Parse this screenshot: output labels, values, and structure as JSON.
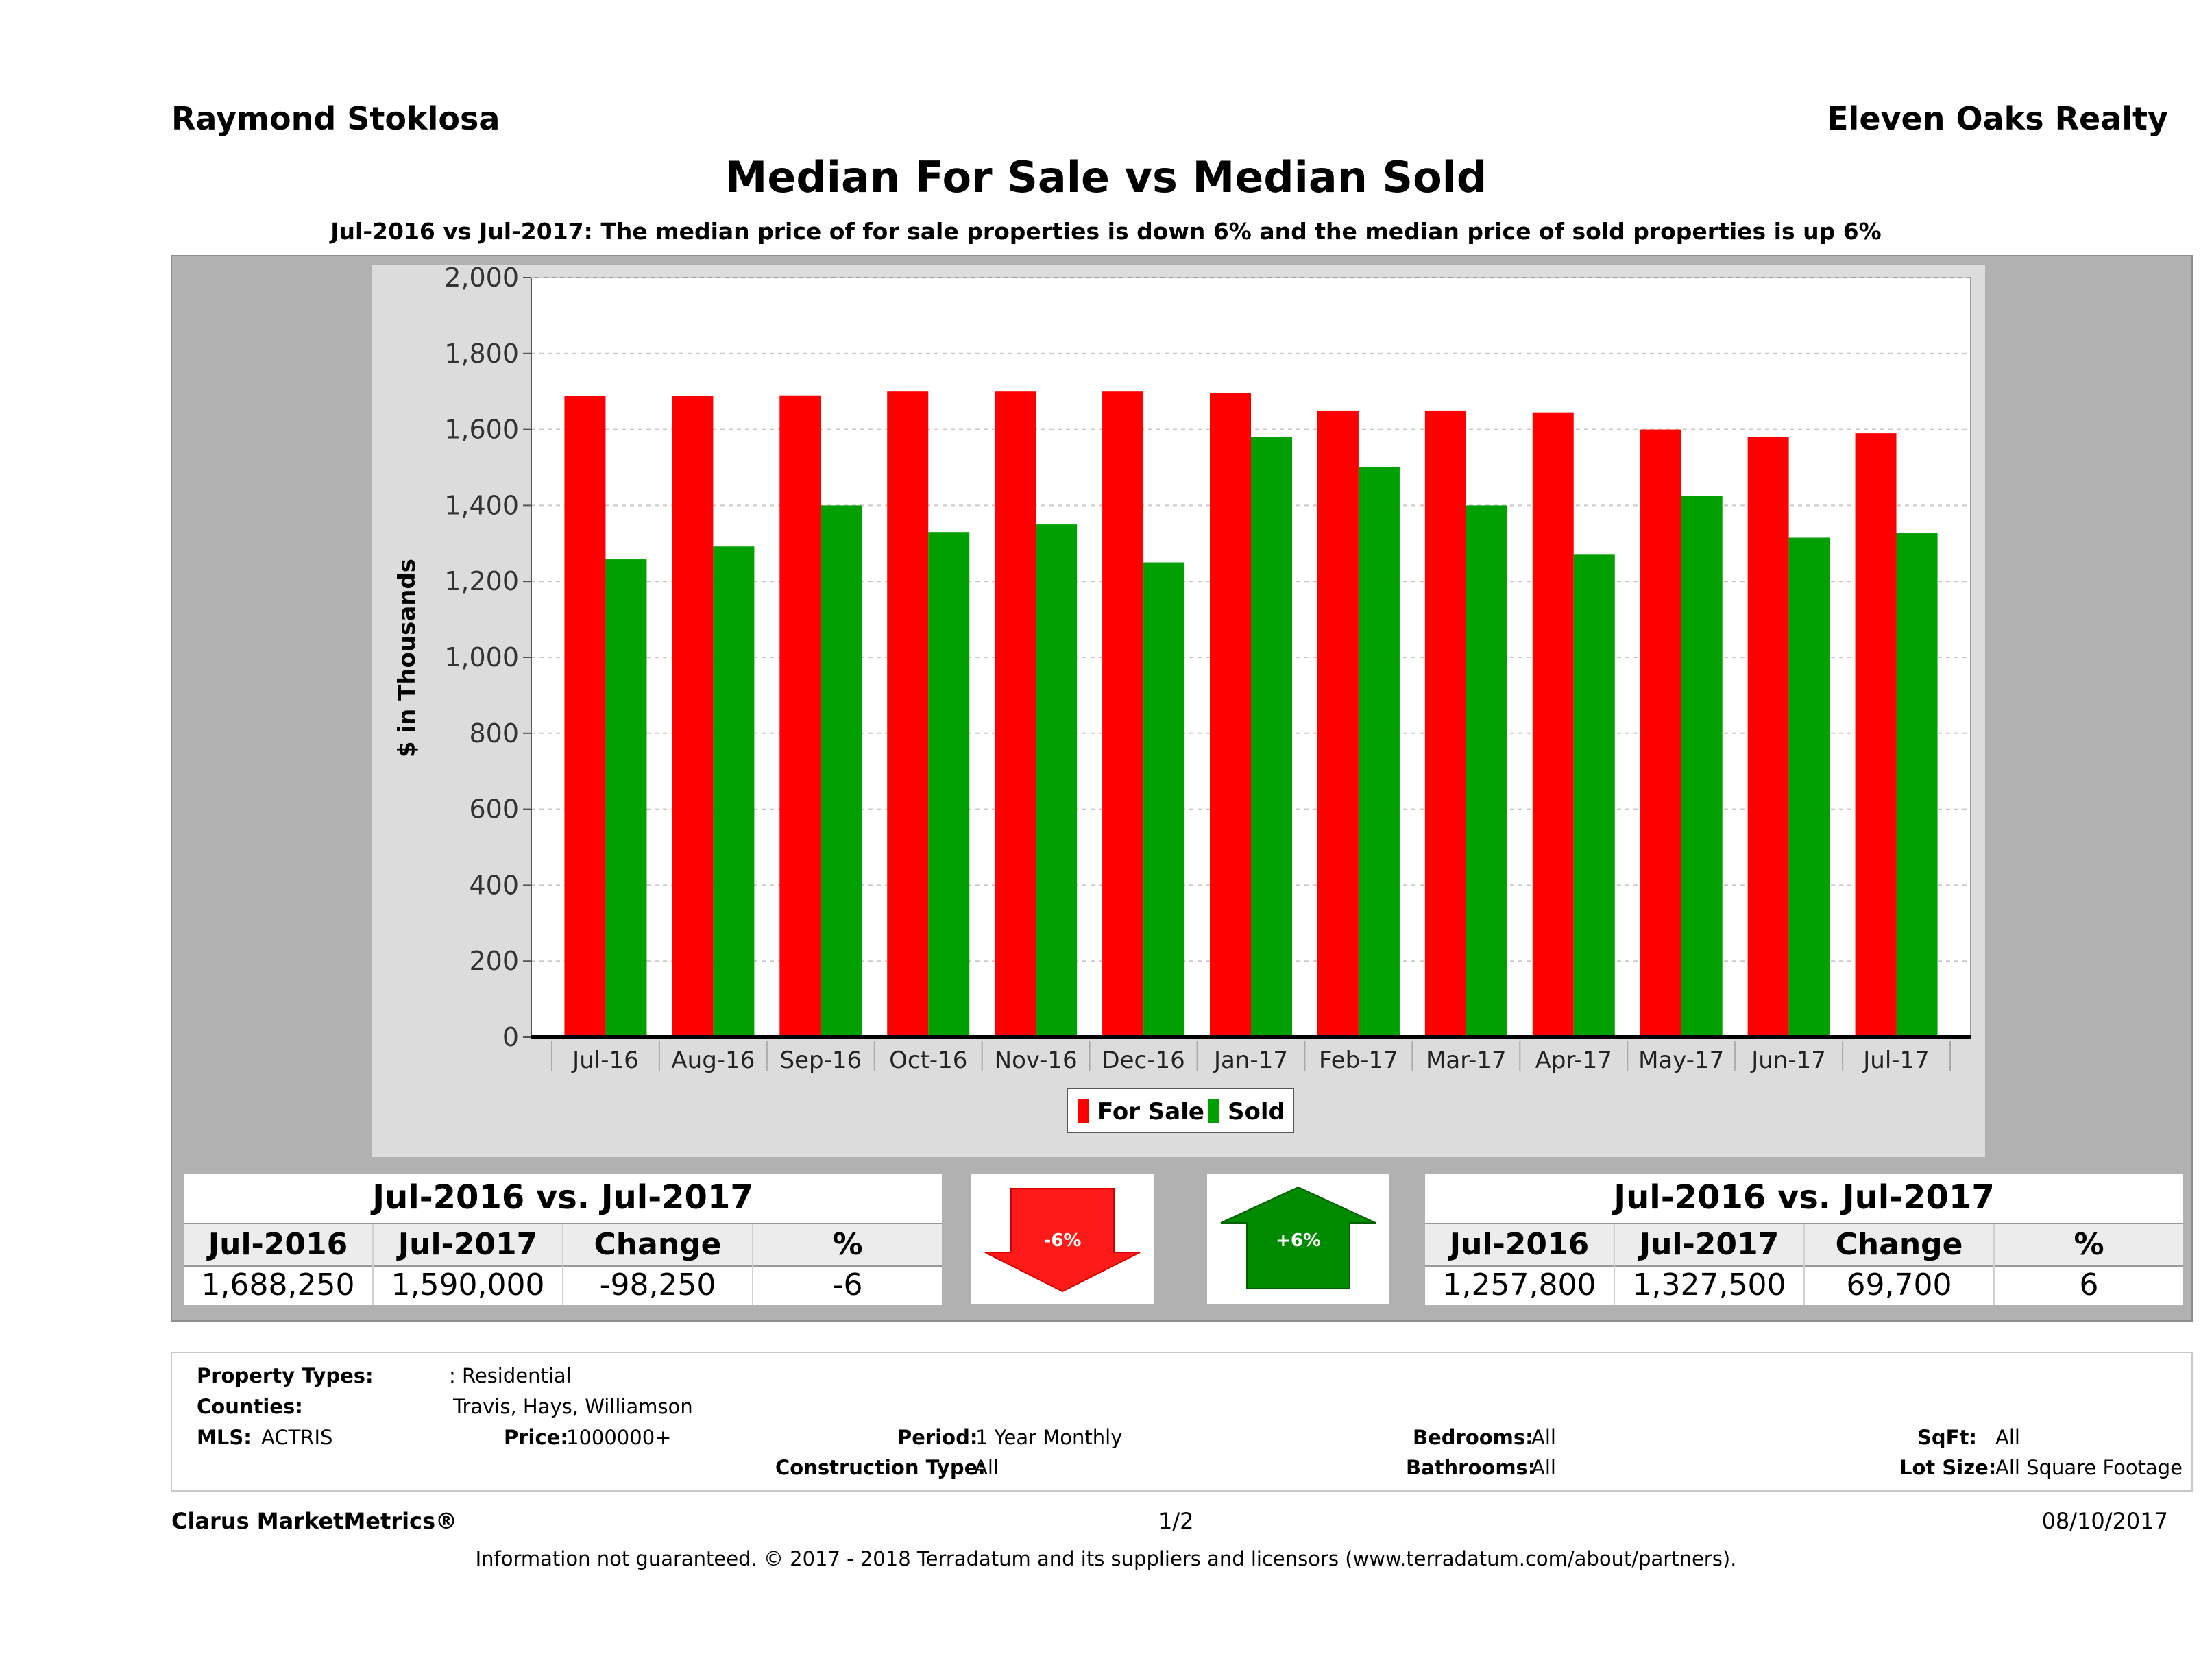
{
  "header": {
    "agent": "Raymond Stoklosa",
    "brokerage": "Eleven Oaks Realty"
  },
  "title": "Median For Sale vs Median Sold",
  "subtitle": "Jul-2016 vs Jul-2017: The median price of for sale properties is down 6% and the median price of sold properties is up 6%",
  "chart_data": {
    "type": "bar",
    "categories": [
      "Jul-16",
      "Aug-16",
      "Sep-16",
      "Oct-16",
      "Nov-16",
      "Dec-16",
      "Jan-17",
      "Feb-17",
      "Mar-17",
      "Apr-17",
      "May-17",
      "Jun-17",
      "Jul-17"
    ],
    "series": [
      {
        "name": "For Sale",
        "color": "#ff0000",
        "values": [
          1688,
          1688,
          1690,
          1700,
          1700,
          1700,
          1695,
          1650,
          1650,
          1645,
          1600,
          1580,
          1590
        ]
      },
      {
        "name": "Sold",
        "color": "#00a000",
        "values": [
          1258,
          1292,
          1400,
          1330,
          1350,
          1250,
          1580,
          1500,
          1400,
          1272,
          1425,
          1315,
          1328
        ]
      }
    ],
    "ylabel": "$ in Thousands",
    "xlabel": "",
    "ylim": [
      0,
      2000
    ],
    "yticks": [
      "0",
      "200",
      "400",
      "600",
      "800",
      "1,000",
      "1,200",
      "1,400",
      "1,600",
      "1,800",
      "2,000"
    ],
    "grid": true,
    "legend_position": "bottom-center"
  },
  "for_sale_summary": {
    "heading": "Jul-2016 vs. Jul-2017",
    "columns": [
      "Jul-2016",
      "Jul-2017",
      "Change",
      "%"
    ],
    "values": [
      "1,688,250",
      "1,590,000",
      "-98,250",
      "-6"
    ],
    "arrow_label": "-6%",
    "arrow_color": "#ff0000"
  },
  "sold_summary": {
    "heading": "Jul-2016 vs. Jul-2017",
    "columns": [
      "Jul-2016",
      "Jul-2017",
      "Change",
      "%"
    ],
    "values": [
      "1,257,800",
      "1,327,500",
      "69,700",
      "6"
    ],
    "arrow_label": "+6%",
    "arrow_color": "#008000"
  },
  "criteria": {
    "property_types_label": "Property Types:",
    "property_types": ": Residential",
    "counties_label": "Counties:",
    "counties": "Travis, Hays, Williamson",
    "mls_label": "MLS:",
    "mls": "ACTRIS",
    "price_label": "Price:",
    "price": "1000000+",
    "period_label": "Period:",
    "period": "1 Year Monthly",
    "construction_label": "Construction Type:",
    "construction": "All",
    "bedrooms_label": "Bedrooms:",
    "bedrooms": "All",
    "bathrooms_label": "Bathrooms:",
    "bathrooms": "All",
    "sqft_label": "SqFt:",
    "sqft": "All",
    "lot_label": "Lot Size:",
    "lot": "All Square Footage"
  },
  "footer": {
    "brand": "Clarus MarketMetrics®",
    "page": "1/2",
    "date": "08/10/2017",
    "disclaimer": "Information not guaranteed. © 2017 - 2018 Terradatum and its suppliers and licensors (www.terradatum.com/about/partners)."
  }
}
